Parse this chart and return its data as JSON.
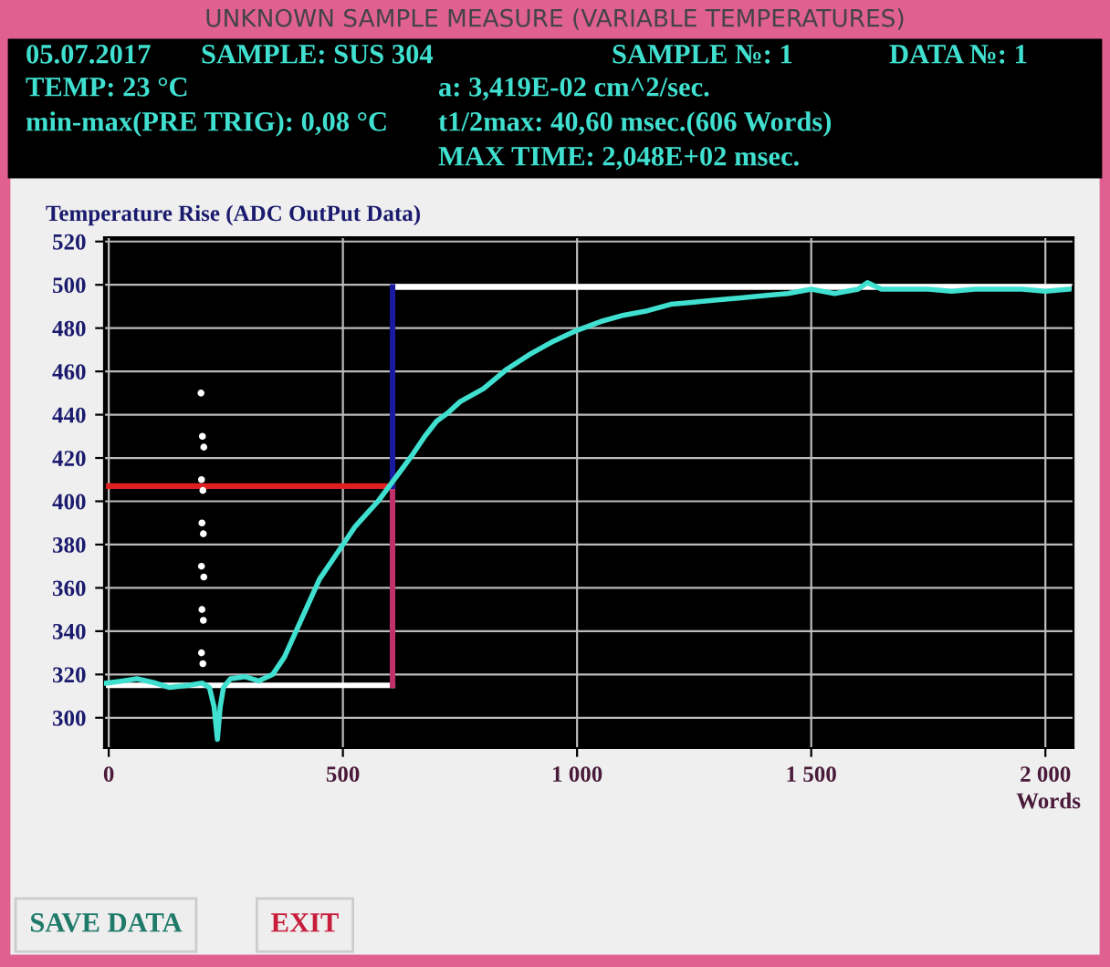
{
  "chart_data": {
    "type": "line",
    "title": "UNKNOWN SAMPLE MEASURE (VARIABLE TEMPERATURES)",
    "ylabel": "Temperature Rise (ADC OutPut Data)",
    "xlabel": "Words",
    "xlim": [
      -10,
      2060
    ],
    "ylim": [
      286,
      522
    ],
    "xticks": [
      0,
      500,
      {
        "value": 1000,
        "label": "1 000"
      },
      {
        "value": 1500,
        "label": "1 500"
      },
      {
        "value": 2000,
        "label": "2 000"
      }
    ],
    "yticks": [
      300,
      320,
      340,
      360,
      380,
      400,
      420,
      440,
      460,
      480,
      500,
      520
    ],
    "grid": true,
    "marker": "none",
    "line_style": "solid",
    "series": [
      {
        "color": "#40e0d0",
        "x": [
          -5,
          30,
          60,
          100,
          130,
          170,
          200,
          215,
          225,
          232,
          238,
          245,
          260,
          290,
          320,
          350,
          375,
          400,
          425,
          450,
          475,
          500,
          525,
          550,
          575,
          606,
          630,
          650,
          675,
          700,
          725,
          750,
          800,
          850,
          900,
          950,
          1000,
          1050,
          1100,
          1150,
          1200,
          1250,
          1300,
          1350,
          1400,
          1450,
          1500,
          1550,
          1600,
          1620,
          1650,
          1700,
          1750,
          1800,
          1850,
          1900,
          1950,
          2000,
          2050
        ],
        "values": [
          316,
          317,
          318,
          316,
          314,
          315,
          316,
          314,
          305,
          290,
          305,
          314,
          318,
          319,
          317,
          320,
          328,
          340,
          352,
          364,
          372,
          380,
          388,
          394,
          400,
          409,
          416,
          422,
          430,
          437,
          441,
          446,
          452,
          461,
          468,
          474,
          479,
          483,
          486,
          488,
          491,
          492,
          493,
          494,
          495,
          496,
          498,
          496,
          498,
          501,
          498,
          498,
          498,
          497,
          498,
          498,
          498,
          497,
          498
        ]
      },
      {
        "type": "scatter",
        "color": "#ffffff",
        "marker": "circle",
        "x": [
          197,
          200,
          203,
          198,
          201,
          199,
          202,
          198,
          203,
          199,
          202,
          198,
          201
        ],
        "values": [
          450,
          430,
          425,
          410,
          405,
          390,
          385,
          370,
          365,
          350,
          345,
          330,
          325
        ]
      },
      {
        "color": "#ffffff",
        "x": [
          0,
          606
        ],
        "values": [
          315,
          315
        ]
      },
      {
        "color": "#ffffff",
        "x": [
          606,
          2050
        ],
        "values": [
          499,
          499
        ]
      },
      {
        "color": "#e02020",
        "x": [
          0,
          606
        ],
        "values": [
          407,
          407
        ]
      },
      {
        "color": "#c0306a",
        "x": [
          606,
          606
        ],
        "values": [
          315,
          407
        ]
      },
      {
        "color": "#1a1aa0",
        "x": [
          606,
          606
        ],
        "values": [
          407,
          499
        ]
      }
    ],
    "annotations": [
      "05.07.2017",
      "SAMPLE: SUS 304",
      "SAMPLE №: 1",
      "DATA №: 1",
      "TEMP: 23 °C",
      "a: 3,419E-02 cm^2/sec.",
      "min-max(PRE TRIG): 0,08 °C",
      "t1/2max: 40,60 msec.(606 Words)",
      "MAX TIME: 2,048E+02 msec.",
      "SAVE DATA",
      "EXIT"
    ]
  }
}
